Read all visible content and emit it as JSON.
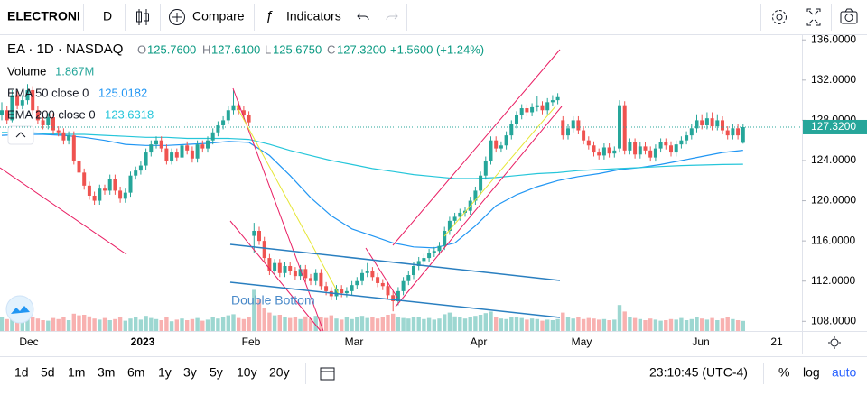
{
  "toolbar": {
    "symbol": "ELECTRONI",
    "interval": "D",
    "compare": "Compare",
    "indicators": "Indicators"
  },
  "legend": {
    "title": "EA · 1D · NASDAQ",
    "o": "O",
    "o_val": "125.7600",
    "h": "H",
    "h_val": "127.6100",
    "l": "L",
    "l_val": "125.6750",
    "c": "C",
    "c_val": "127.3200",
    "change": "+1.5600 (+1.24%)",
    "volume": "Volume",
    "volume_val": "1.867M",
    "ema50": "EMA 50 close 0",
    "ema50_val": "125.0182",
    "ema200": "EMA 200 close 0",
    "ema200_val": "123.6318"
  },
  "chart_data": {
    "type": "candlestick",
    "ylim": [
      107.04,
      136.56
    ],
    "yticks": [
      {
        "value": 136,
        "label": "136.0000"
      },
      {
        "value": 132,
        "label": "132.0000"
      },
      {
        "value": 128,
        "label": "128.0000"
      },
      {
        "value": 124,
        "label": "124.0000"
      },
      {
        "value": 120,
        "label": "120.0000"
      },
      {
        "value": 116,
        "label": "116.0000"
      },
      {
        "value": 112,
        "label": "112.0000"
      },
      {
        "value": 108,
        "label": "108.0000"
      }
    ],
    "last_price": {
      "value": 127.32,
      "label": "127.3200"
    },
    "x_labels": [
      "Dec",
      "2023",
      "Feb",
      "Mar",
      "Apr",
      "May",
      "Jun",
      "21"
    ],
    "annotation": "Double Bottom",
    "up_color": "#26a69a",
    "down_color": "#ef5350",
    "ohlc": [
      [
        128.5,
        129.8,
        128,
        129
      ],
      [
        129,
        129.4,
        127.6,
        128
      ],
      [
        128,
        131,
        127.8,
        130.5
      ],
      [
        130.5,
        130.9,
        129.1,
        129.5
      ],
      [
        129.5,
        130.5,
        129.1,
        130
      ],
      [
        130,
        131.6,
        129.6,
        131
      ],
      [
        131,
        131.4,
        128.6,
        129
      ],
      [
        129,
        129.4,
        127.6,
        128
      ],
      [
        128,
        128.4,
        127.1,
        127.5
      ],
      [
        127.5,
        128.7,
        127.1,
        128.3
      ],
      [
        128.3,
        128.7,
        126.6,
        127
      ],
      [
        127,
        127.4,
        126.4,
        126.8
      ],
      [
        126.8,
        127.2,
        125.6,
        126
      ],
      [
        126,
        126.9,
        125.6,
        126.5
      ],
      [
        126.5,
        126.9,
        123.6,
        124
      ],
      [
        124,
        124.4,
        122.4,
        122.8
      ],
      [
        122.8,
        123.2,
        121.1,
        121.5
      ],
      [
        121.5,
        121.9,
        120.1,
        120.5
      ],
      [
        120.5,
        120.9,
        119.6,
        120
      ],
      [
        120,
        121.6,
        119.6,
        121.2
      ],
      [
        121.2,
        121.6,
        120.6,
        121
      ],
      [
        121,
        122.6,
        120.6,
        122.2
      ],
      [
        122.2,
        122.6,
        120.6,
        121
      ],
      [
        121,
        121.4,
        119.8,
        120.2
      ],
      [
        120.2,
        121.2,
        119.8,
        120.8
      ],
      [
        120.8,
        122.9,
        120.4,
        122.5
      ],
      [
        122.5,
        123.4,
        122.1,
        123
      ],
      [
        123,
        123.9,
        122.6,
        123.5
      ],
      [
        123.5,
        125.2,
        123.1,
        124.8
      ],
      [
        124.8,
        126,
        124.4,
        125.6
      ],
      [
        125.6,
        126.4,
        125.2,
        126
      ],
      [
        126,
        126.4,
        124.8,
        125.2
      ],
      [
        125.2,
        125.6,
        123.6,
        124
      ],
      [
        124,
        125.2,
        123.6,
        124.8
      ],
      [
        124.8,
        125.2,
        123.9,
        124.3
      ],
      [
        124.3,
        125.9,
        123.9,
        125.5
      ],
      [
        125.5,
        125.9,
        124.6,
        125
      ],
      [
        125,
        125.4,
        123.8,
        124.2
      ],
      [
        124.2,
        126,
        123.8,
        125.6
      ],
      [
        125.6,
        126,
        124.8,
        125.2
      ],
      [
        125.2,
        126.4,
        124.8,
        126
      ],
      [
        126,
        127.2,
        125.6,
        126.8
      ],
      [
        126.8,
        127.9,
        126.4,
        127.5
      ],
      [
        127.5,
        128.4,
        127.1,
        128
      ],
      [
        128,
        129.4,
        127.6,
        129
      ],
      [
        129,
        131,
        128.6,
        129.5
      ],
      [
        129.5,
        129.9,
        128.6,
        129
      ],
      [
        129,
        129.4,
        128.1,
        128.5
      ],
      [
        128.5,
        128.9,
        127.4,
        127.8
      ],
      [
        116.5,
        117.8,
        114.8,
        117
      ],
      [
        117,
        117.4,
        115.6,
        116
      ],
      [
        116,
        116.4,
        113.9,
        114.3
      ],
      [
        114.3,
        114.7,
        112.6,
        113
      ],
      [
        113,
        114.2,
        112.6,
        113.8
      ],
      [
        113.8,
        114.2,
        112.4,
        112.8
      ],
      [
        112.8,
        113.9,
        112.4,
        113.5
      ],
      [
        113.5,
        113.9,
        112.6,
        113
      ],
      [
        113,
        113.4,
        112.1,
        112.5
      ],
      [
        112.5,
        113.6,
        112.1,
        113.2
      ],
      [
        113.2,
        113.6,
        111.9,
        112.3
      ],
      [
        112.3,
        112.7,
        111.6,
        112
      ],
      [
        112,
        113.2,
        111.6,
        112.8
      ],
      [
        112.8,
        113.2,
        111.1,
        111.5
      ],
      [
        111.5,
        111.9,
        110.6,
        111
      ],
      [
        111,
        111.4,
        110.1,
        110.5
      ],
      [
        110.5,
        111.6,
        110.1,
        111.2
      ],
      [
        111.2,
        111.6,
        110.4,
        110.8
      ],
      [
        110.8,
        111.4,
        110.4,
        111
      ],
      [
        111,
        112,
        110.6,
        111.6
      ],
      [
        111.6,
        112.4,
        111.2,
        112
      ],
      [
        112,
        113.2,
        111.6,
        112.8
      ],
      [
        112.8,
        113.8,
        112.4,
        113
      ],
      [
        113,
        113.4,
        112,
        112.4
      ],
      [
        112.4,
        112.8,
        111.4,
        111.8
      ],
      [
        111.8,
        112.2,
        111.1,
        111.5
      ],
      [
        111.5,
        111.9,
        110.2,
        110.6
      ],
      [
        110.6,
        111,
        109,
        110
      ],
      [
        110,
        111.4,
        109.6,
        111
      ],
      [
        111,
        112.4,
        110.6,
        112
      ],
      [
        112,
        113,
        111.6,
        112.6
      ],
      [
        112.6,
        113.9,
        112.2,
        113.5
      ],
      [
        113.5,
        114.4,
        113.1,
        114
      ],
      [
        114,
        114.7,
        113.6,
        114.3
      ],
      [
        114.3,
        115.2,
        113.9,
        114.8
      ],
      [
        114.8,
        115.4,
        114.4,
        115
      ],
      [
        115,
        115.9,
        114.6,
        115.5
      ],
      [
        115.5,
        117.4,
        115.1,
        117
      ],
      [
        117,
        118.4,
        116.6,
        118
      ],
      [
        118,
        118.8,
        117.6,
        118.4
      ],
      [
        118.4,
        119.2,
        118,
        118.8
      ],
      [
        118.8,
        119.4,
        118.4,
        119
      ],
      [
        119,
        120.4,
        118.6,
        120
      ],
      [
        120,
        121.4,
        119.6,
        121
      ],
      [
        121,
        122.9,
        120.6,
        122.5
      ],
      [
        122.5,
        124.4,
        122.1,
        124
      ],
      [
        124,
        126.4,
        123.6,
        126
      ],
      [
        126,
        126.4,
        124.8,
        125.2
      ],
      [
        125.2,
        125.9,
        124.8,
        125.5
      ],
      [
        125.5,
        126.9,
        125.1,
        126.5
      ],
      [
        126.5,
        128,
        126.1,
        127.6
      ],
      [
        127.6,
        128.9,
        127.2,
        128.5
      ],
      [
        128.5,
        129.6,
        128.1,
        129.2
      ],
      [
        129.2,
        129.6,
        128.4,
        128.8
      ],
      [
        128.8,
        129.7,
        128.4,
        129.3
      ],
      [
        129.3,
        130.4,
        128.9,
        129.5
      ],
      [
        129.5,
        129.9,
        128.6,
        129
      ],
      [
        129,
        130.2,
        128.6,
        129.8
      ],
      [
        129.8,
        130.5,
        129.4,
        130
      ],
      [
        130,
        130.7,
        129.6,
        130.3
      ],
      [
        128,
        128.4,
        126.1,
        126.5
      ],
      [
        126.5,
        127.6,
        126.1,
        127.2
      ],
      [
        127.2,
        128.4,
        126.8,
        128
      ],
      [
        128,
        128.4,
        126.6,
        127
      ],
      [
        127,
        127.4,
        125.6,
        126
      ],
      [
        126,
        126.4,
        125.1,
        125.5
      ],
      [
        125.5,
        125.9,
        124.4,
        124.8
      ],
      [
        124.8,
        125.2,
        124.1,
        124.5
      ],
      [
        124.5,
        125.7,
        124.1,
        125.3
      ],
      [
        125.3,
        125.7,
        124.3,
        124.7
      ],
      [
        124.7,
        125.4,
        124.3,
        125
      ],
      [
        125.2,
        130,
        124.8,
        129.5
      ],
      [
        129.5,
        129.9,
        124.6,
        125
      ],
      [
        125,
        126.2,
        124.6,
        125.8
      ],
      [
        125.8,
        126.2,
        124.2,
        124.6
      ],
      [
        124.6,
        125.8,
        124.2,
        125.4
      ],
      [
        125.4,
        125.8,
        124.6,
        125
      ],
      [
        125,
        125.4,
        123.9,
        124.3
      ],
      [
        124.3,
        125.6,
        123.9,
        125.2
      ],
      [
        125.2,
        126.2,
        124.8,
        125.8
      ],
      [
        125.8,
        126.2,
        125.1,
        125.5
      ],
      [
        125.5,
        125.9,
        124.4,
        124.8
      ],
      [
        124.8,
        126,
        124.4,
        125.6
      ],
      [
        125.6,
        126.4,
        125.2,
        126
      ],
      [
        126,
        126.9,
        125.6,
        126.5
      ],
      [
        126.5,
        127.6,
        126.1,
        127.2
      ],
      [
        127.2,
        128.6,
        126.8,
        128
      ],
      [
        128,
        128.6,
        127.1,
        127.5
      ],
      [
        127.5,
        128.8,
        127.1,
        128.2
      ],
      [
        128.2,
        128.8,
        127,
        127.4
      ],
      [
        127.4,
        128.6,
        127,
        128
      ],
      [
        128,
        128.4,
        126.6,
        127
      ],
      [
        127,
        127.4,
        126.1,
        126.5
      ],
      [
        126.5,
        127.6,
        126.1,
        127.2
      ],
      [
        127.2,
        127.6,
        126.1,
        126.5
      ],
      [
        125.76,
        127.61,
        125.675,
        127.32
      ]
    ],
    "volume": [
      2.6,
      2.2,
      3.0,
      2.4,
      2.1,
      2.8,
      2.5,
      2.3,
      2.0,
      1.9,
      2.4,
      2.2,
      2.6,
      2.0,
      3.2,
      2.9,
      3.0,
      2.7,
      2.3,
      2.1,
      2.4,
      2.0,
      2.2,
      2.6,
      1.9,
      2.3,
      2.5,
      2.1,
      2.8,
      2.4,
      2.2,
      2.0,
      2.6,
      1.8,
      2.1,
      2.3,
      2.0,
      2.2,
      2.4,
      1.9,
      2.1,
      2.5,
      2.3,
      2.6,
      2.9,
      3.1,
      2.4,
      2.2,
      2.6,
      7.6,
      5.8,
      4.2,
      3.4,
      2.9,
      3.0,
      2.6,
      2.4,
      2.5,
      2.2,
      2.7,
      2.3,
      2.8,
      2.6,
      2.4,
      2.9,
      2.3,
      2.1,
      2.5,
      2.2,
      2.6,
      2.8,
      2.4,
      2.6,
      2.3,
      2.5,
      3.0,
      3.2,
      2.6,
      2.4,
      2.3,
      2.5,
      2.6,
      2.2,
      2.4,
      2.1,
      2.3,
      3.1,
      3.4,
      2.7,
      2.5,
      2.3,
      2.6,
      2.8,
      3.0,
      3.3,
      3.6,
      2.6,
      2.3,
      2.2,
      2.5,
      2.6,
      2.4,
      2.1,
      2.3,
      2.2,
      1.9,
      2.1,
      2.0,
      2.2,
      3.4,
      2.6,
      2.3,
      2.5,
      2.2,
      2.4,
      2.3,
      2.1,
      2.2,
      2.0,
      2.1,
      4.8,
      3.6,
      2.6,
      2.4,
      2.2,
      2.0,
      2.3,
      2.1,
      1.9,
      2.0,
      2.2,
      2.1,
      2.4,
      2.0,
      2.2,
      2.5,
      2.3,
      2.1,
      2.4,
      2.0,
      2.3,
      2.6,
      2.2,
      2.0,
      1.867
    ],
    "ema": [
      {
        "name": "EMA 50",
        "color": "#2196f3",
        "x": [
          0,
          4,
          8,
          12,
          16,
          20,
          24,
          28,
          32,
          36,
          40,
          44,
          48,
          52,
          56,
          60,
          64,
          68,
          72,
          76,
          80,
          84,
          88,
          92,
          96,
          100,
          104,
          108,
          112,
          116,
          120,
          124,
          128,
          132,
          136,
          140,
          144
        ],
        "values": [
          126.5,
          126.6,
          126.6,
          126.5,
          126.3,
          126,
          125.6,
          125.5,
          125.5,
          125.6,
          125.7,
          125.9,
          125.8,
          124.5,
          122.5,
          120.3,
          118.5,
          117.2,
          116.5,
          115.8,
          115.4,
          115.3,
          115.8,
          117.5,
          119.5,
          120.6,
          121.4,
          122,
          122.4,
          122.7,
          123.1,
          123.3,
          123.6,
          124,
          124.4,
          124.8,
          125.0182
        ]
      },
      {
        "name": "EMA 200",
        "color": "#26c6da",
        "x": [
          0,
          4,
          8,
          12,
          16,
          20,
          24,
          28,
          32,
          36,
          40,
          44,
          48,
          52,
          56,
          60,
          64,
          68,
          72,
          76,
          80,
          84,
          88,
          92,
          96,
          100,
          104,
          108,
          112,
          116,
          120,
          124,
          128,
          132,
          136,
          140,
          144
        ],
        "values": [
          126.8,
          126.8,
          126.7,
          126.6,
          126.6,
          126.5,
          126.4,
          126.3,
          126.3,
          126.2,
          126.2,
          126.2,
          126.1,
          125.6,
          125,
          124.5,
          124,
          123.6,
          123.2,
          122.9,
          122.6,
          122.4,
          122.2,
          122.2,
          122.3,
          122.5,
          122.7,
          122.8,
          123,
          123.1,
          123.2,
          123.3,
          123.4,
          123.5,
          123.55,
          123.6,
          123.6318
        ]
      }
    ]
  },
  "bottom_bar": {
    "ranges": [
      "1d",
      "5d",
      "1m",
      "3m",
      "6m",
      "1y",
      "3y",
      "5y",
      "10y",
      "20y"
    ],
    "time": "23:10:45 (UTC-4)",
    "percent": "%",
    "log": "log",
    "auto": "auto"
  }
}
